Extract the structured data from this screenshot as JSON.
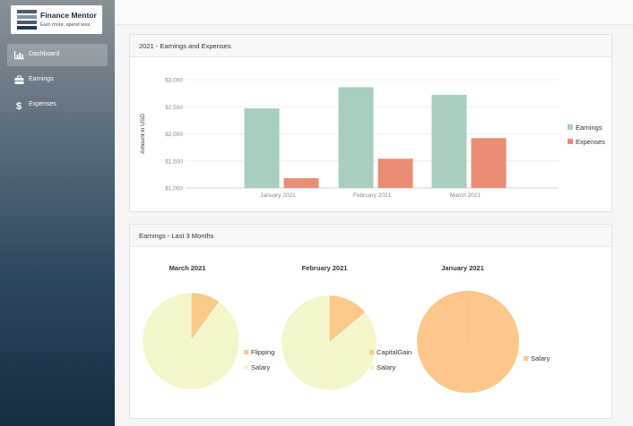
{
  "brand": {
    "title": "Finance Mentor",
    "tagline": "Earn more, spend less."
  },
  "nav": {
    "items": [
      {
        "label": "Dashboard",
        "active": true,
        "icon": "bar-chart-icon"
      },
      {
        "label": "Earnings",
        "active": false,
        "icon": "briefcase-icon"
      },
      {
        "label": "Expenses",
        "active": false,
        "icon": "dollar-icon"
      }
    ]
  },
  "colors": {
    "earnings": "#a8cfbd",
    "expenses": "#e98d75",
    "salary": "#f4f5c8",
    "flipping": "#fbc98a",
    "capitalgain": "#fbc98a",
    "salary_jan": "#fcc78a"
  },
  "bar_card": {
    "title": "2021 - Earnings and Expenses"
  },
  "pie_card": {
    "title": "Earnings - Last 3 Months"
  },
  "chart_data": [
    {
      "type": "bar",
      "title": "2021 - Earnings and Expenses",
      "xlabel": "",
      "ylabel": "Amount in USD",
      "categories": [
        "January 2021",
        "February 2021",
        "March 2021"
      ],
      "series": [
        {
          "name": "Earnings",
          "values": [
            2470,
            2860,
            2720
          ]
        },
        {
          "name": "Expenses",
          "values": [
            1180,
            1540,
            1920
          ]
        }
      ],
      "ylim": [
        1000,
        3000
      ],
      "yticks": [
        "$1,000",
        "$1,500",
        "$2,000",
        "$2,500",
        "$3,000"
      ],
      "grid": true,
      "legend": "right"
    },
    {
      "type": "pie",
      "title": "March 2021",
      "labels": [
        "Flipping",
        "Salary"
      ],
      "values": [
        0.1,
        0.9
      ],
      "legend": "right"
    },
    {
      "type": "pie",
      "title": "February 2021",
      "labels": [
        "CapitalGain",
        "Salary"
      ],
      "values": [
        0.14,
        0.86
      ],
      "legend": "right"
    },
    {
      "type": "pie",
      "title": "January 2021",
      "labels": [
        "Salary"
      ],
      "values": [
        1.0
      ],
      "legend": "right"
    }
  ]
}
